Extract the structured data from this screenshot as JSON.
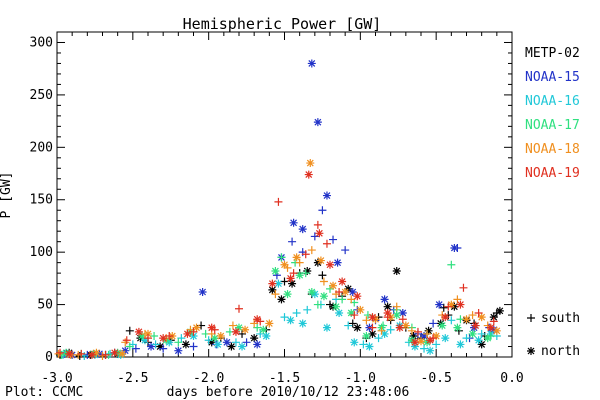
{
  "chart_data": {
    "type": "scatter",
    "title": "Hemispheric Power [GW]",
    "xlabel": "days before 2010/10/12 23:48:06",
    "ylabel": "P [GW]",
    "xlim": [
      -3.0,
      0.0
    ],
    "ylim": [
      0,
      310
    ],
    "xticks": [
      "-3.0",
      "-2.5",
      "-2.0",
      "-1.5",
      "-1.0",
      "-0.5",
      "0.0"
    ],
    "xtick_values": [
      -3.0,
      -2.5,
      -2.0,
      -1.5,
      -1.0,
      -0.5,
      0.0
    ],
    "yticks": [
      "0",
      "50",
      "100",
      "150",
      "200",
      "250",
      "300"
    ],
    "ytick_values": [
      0,
      50,
      100,
      150,
      200,
      250,
      300
    ],
    "credit": "Plot: CCMC",
    "legend_markers": [
      {
        "symbol": "+",
        "label": "south"
      },
      {
        "symbol": "*",
        "label": "north"
      }
    ],
    "series": [
      {
        "name": "METP-02",
        "color": "#000000",
        "south": [
          [
            -2.98,
            2
          ],
          [
            -2.85,
            1
          ],
          [
            -2.68,
            2
          ],
          [
            -2.52,
            25
          ],
          [
            -2.4,
            14
          ],
          [
            -2.25,
            16
          ],
          [
            -2.05,
            30
          ],
          [
            -1.92,
            18
          ],
          [
            -1.78,
            22
          ],
          [
            -1.62,
            26
          ],
          [
            -1.5,
            72
          ],
          [
            -1.4,
            80
          ],
          [
            -1.32,
            60
          ],
          [
            -1.25,
            78
          ],
          [
            -1.2,
            50
          ],
          [
            -1.12,
            58
          ],
          [
            -1.05,
            32
          ],
          [
            -0.96,
            18
          ],
          [
            -0.88,
            38
          ],
          [
            -0.8,
            35
          ],
          [
            -0.7,
            28
          ],
          [
            -0.6,
            18
          ],
          [
            -0.45,
            47
          ],
          [
            -0.42,
            40
          ],
          [
            -0.35,
            25
          ],
          [
            -0.25,
            32
          ],
          [
            -0.18,
            20
          ],
          [
            -0.1,
            42
          ]
        ],
        "north": [
          [
            -2.92,
            4
          ],
          [
            -2.78,
            2
          ],
          [
            -2.6,
            3
          ],
          [
            -2.45,
            18
          ],
          [
            -2.32,
            10
          ],
          [
            -2.15,
            12
          ],
          [
            -1.98,
            14
          ],
          [
            -1.85,
            10
          ],
          [
            -1.7,
            18
          ],
          [
            -1.58,
            64
          ],
          [
            -1.52,
            55
          ],
          [
            -1.45,
            70
          ],
          [
            -1.35,
            82
          ],
          [
            -1.28,
            90
          ],
          [
            -1.18,
            48
          ],
          [
            -1.08,
            65
          ],
          [
            -1.02,
            28
          ],
          [
            -0.92,
            22
          ],
          [
            -0.82,
            48
          ],
          [
            -0.76,
            82
          ],
          [
            -0.65,
            20
          ],
          [
            -0.55,
            25
          ],
          [
            -0.47,
            32
          ],
          [
            -0.38,
            48
          ],
          [
            -0.3,
            35
          ],
          [
            -0.2,
            12
          ],
          [
            -0.12,
            38
          ],
          [
            -0.08,
            44
          ]
        ]
      },
      {
        "name": "NOAA-15",
        "color": "#2233c8",
        "south": [
          [
            -2.95,
            3
          ],
          [
            -2.8,
            2
          ],
          [
            -2.62,
            4
          ],
          [
            -2.48,
            8
          ],
          [
            -2.3,
            8
          ],
          [
            -2.1,
            10
          ],
          [
            -1.95,
            12
          ],
          [
            -1.75,
            14
          ],
          [
            -1.55,
            78
          ],
          [
            -1.45,
            110
          ],
          [
            -1.38,
            100
          ],
          [
            -1.3,
            115
          ],
          [
            -1.25,
            140
          ],
          [
            -1.18,
            112
          ],
          [
            -1.1,
            102
          ],
          [
            -1.02,
            45
          ],
          [
            -0.9,
            35
          ],
          [
            -0.78,
            45
          ],
          [
            -0.62,
            22
          ],
          [
            -0.52,
            32
          ],
          [
            -0.36,
            104
          ],
          [
            -0.28,
            18
          ],
          [
            -0.15,
            28
          ]
        ],
        "north": [
          [
            -2.9,
            2
          ],
          [
            -2.72,
            3
          ],
          [
            -2.55,
            6
          ],
          [
            -2.38,
            10
          ],
          [
            -2.2,
            6
          ],
          [
            -2.04,
            62
          ],
          [
            -1.88,
            14
          ],
          [
            -1.68,
            12
          ],
          [
            -1.52,
            95
          ],
          [
            -1.44,
            128
          ],
          [
            -1.38,
            122
          ],
          [
            -1.32,
            280
          ],
          [
            -1.28,
            224
          ],
          [
            -1.22,
            154
          ],
          [
            -1.15,
            90
          ],
          [
            -1.05,
            62
          ],
          [
            -0.94,
            28
          ],
          [
            -0.84,
            55
          ],
          [
            -0.72,
            42
          ],
          [
            -0.58,
            20
          ],
          [
            -0.48,
            50
          ],
          [
            -0.38,
            104
          ],
          [
            -0.25,
            28
          ],
          [
            -0.12,
            26
          ]
        ]
      },
      {
        "name": "NOAA-16",
        "color": "#20c8d8",
        "south": [
          [
            -2.96,
            2
          ],
          [
            -2.82,
            1
          ],
          [
            -2.65,
            3
          ],
          [
            -2.5,
            12
          ],
          [
            -2.35,
            12
          ],
          [
            -2.18,
            18
          ],
          [
            -2.0,
            16
          ],
          [
            -1.82,
            14
          ],
          [
            -1.66,
            22
          ],
          [
            -1.5,
            38
          ],
          [
            -1.42,
            42
          ],
          [
            -1.35,
            45
          ],
          [
            -1.26,
            50
          ],
          [
            -1.16,
            55
          ],
          [
            -1.08,
            30
          ],
          [
            -0.98,
            12
          ],
          [
            -0.88,
            18
          ],
          [
            -0.8,
            26
          ],
          [
            -0.68,
            14
          ],
          [
            -0.58,
            8
          ],
          [
            -0.5,
            12
          ],
          [
            -0.4,
            35
          ],
          [
            -0.3,
            18
          ],
          [
            -0.2,
            22
          ],
          [
            -0.1,
            20
          ]
        ],
        "north": [
          [
            -2.93,
            3
          ],
          [
            -2.75,
            2
          ],
          [
            -2.58,
            2
          ],
          [
            -2.42,
            16
          ],
          [
            -2.26,
            14
          ],
          [
            -2.1,
            20
          ],
          [
            -1.94,
            12
          ],
          [
            -1.78,
            10
          ],
          [
            -1.62,
            20
          ],
          [
            -1.54,
            70
          ],
          [
            -1.46,
            35
          ],
          [
            -1.38,
            32
          ],
          [
            -1.3,
            60
          ],
          [
            -1.22,
            28
          ],
          [
            -1.14,
            42
          ],
          [
            -1.04,
            14
          ],
          [
            -0.94,
            10
          ],
          [
            -0.84,
            22
          ],
          [
            -0.74,
            30
          ],
          [
            -0.64,
            10
          ],
          [
            -0.54,
            6
          ],
          [
            -0.44,
            18
          ],
          [
            -0.34,
            12
          ],
          [
            -0.22,
            16
          ],
          [
            -0.14,
            22
          ]
        ]
      },
      {
        "name": "NOAA-17",
        "color": "#30e080",
        "south": [
          [
            -2.97,
            2
          ],
          [
            -2.84,
            3
          ],
          [
            -2.66,
            2
          ],
          [
            -2.52,
            10
          ],
          [
            -2.36,
            20
          ],
          [
            -2.2,
            14
          ],
          [
            -2.02,
            22
          ],
          [
            -1.86,
            24
          ],
          [
            -1.68,
            28
          ],
          [
            -1.52,
            95
          ],
          [
            -1.43,
            90
          ],
          [
            -1.36,
            80
          ],
          [
            -1.28,
            50
          ],
          [
            -1.2,
            65
          ],
          [
            -1.12,
            55
          ],
          [
            -1.04,
            52
          ],
          [
            -0.95,
            40
          ],
          [
            -0.85,
            30
          ],
          [
            -0.76,
            45
          ],
          [
            -0.66,
            28
          ],
          [
            -0.56,
            22
          ],
          [
            -0.4,
            88
          ],
          [
            -0.34,
            36
          ],
          [
            -0.24,
            30
          ],
          [
            -0.14,
            20
          ]
        ],
        "north": [
          [
            -2.94,
            4
          ],
          [
            -2.76,
            3
          ],
          [
            -2.6,
            4
          ],
          [
            -2.44,
            20
          ],
          [
            -2.28,
            16
          ],
          [
            -2.12,
            24
          ],
          [
            -1.96,
            18
          ],
          [
            -1.8,
            28
          ],
          [
            -1.64,
            26
          ],
          [
            -1.56,
            82
          ],
          [
            -1.48,
            60
          ],
          [
            -1.4,
            78
          ],
          [
            -1.32,
            62
          ],
          [
            -1.24,
            58
          ],
          [
            -1.16,
            48
          ],
          [
            -1.06,
            42
          ],
          [
            -0.96,
            20
          ],
          [
            -0.86,
            28
          ],
          [
            -0.76,
            40
          ],
          [
            -0.66,
            16
          ],
          [
            -0.56,
            14
          ],
          [
            -0.46,
            30
          ],
          [
            -0.36,
            28
          ],
          [
            -0.26,
            22
          ],
          [
            -0.16,
            18
          ]
        ]
      },
      {
        "name": "NOAA-18",
        "color": "#f09020",
        "south": [
          [
            -2.99,
            3
          ],
          [
            -2.86,
            2
          ],
          [
            -2.7,
            1
          ],
          [
            -2.55,
            14
          ],
          [
            -2.42,
            22
          ],
          [
            -2.28,
            18
          ],
          [
            -2.12,
            26
          ],
          [
            -1.98,
            22
          ],
          [
            -1.84,
            30
          ],
          [
            -1.7,
            32
          ],
          [
            -1.56,
            60
          ],
          [
            -1.48,
            85
          ],
          [
            -1.4,
            90
          ],
          [
            -1.32,
            102
          ],
          [
            -1.24,
            72
          ],
          [
            -1.16,
            60
          ],
          [
            -1.06,
            55
          ],
          [
            -0.96,
            35
          ],
          [
            -0.86,
            25
          ],
          [
            -0.76,
            48
          ],
          [
            -0.66,
            25
          ],
          [
            -0.56,
            22
          ],
          [
            -0.46,
            40
          ],
          [
            -0.36,
            55
          ],
          [
            -0.26,
            40
          ],
          [
            -0.16,
            30
          ]
        ],
        "north": [
          [
            -2.91,
            2
          ],
          [
            -2.74,
            4
          ],
          [
            -2.57,
            3
          ],
          [
            -2.4,
            22
          ],
          [
            -2.24,
            20
          ],
          [
            -2.08,
            28
          ],
          [
            -1.92,
            20
          ],
          [
            -1.76,
            26
          ],
          [
            -1.6,
            32
          ],
          [
            -1.5,
            88
          ],
          [
            -1.42,
            95
          ],
          [
            -1.33,
            185
          ],
          [
            -1.26,
            92
          ],
          [
            -1.18,
            68
          ],
          [
            -1.1,
            62
          ],
          [
            -1.0,
            45
          ],
          [
            -0.9,
            36
          ],
          [
            -0.8,
            38
          ],
          [
            -0.7,
            30
          ],
          [
            -0.6,
            15
          ],
          [
            -0.5,
            20
          ],
          [
            -0.4,
            50
          ],
          [
            -0.3,
            36
          ],
          [
            -0.2,
            38
          ],
          [
            -0.1,
            25
          ]
        ]
      },
      {
        "name": "NOAA-19",
        "color": "#e03020",
        "south": [
          [
            -2.98,
            4
          ],
          [
            -2.84,
            3
          ],
          [
            -2.68,
            2
          ],
          [
            -2.54,
            16
          ],
          [
            -2.4,
            18
          ],
          [
            -2.26,
            20
          ],
          [
            -2.1,
            24
          ],
          [
            -1.96,
            26
          ],
          [
            -1.8,
            46
          ],
          [
            -1.66,
            34
          ],
          [
            -1.54,
            148
          ],
          [
            -1.44,
            80
          ],
          [
            -1.36,
            98
          ],
          [
            -1.28,
            126
          ],
          [
            -1.22,
            108
          ],
          [
            -1.14,
            62
          ],
          [
            -1.04,
            40
          ],
          [
            -0.92,
            28
          ],
          [
            -0.82,
            38
          ],
          [
            -0.72,
            36
          ],
          [
            -0.62,
            24
          ],
          [
            -0.52,
            18
          ],
          [
            -0.42,
            48
          ],
          [
            -0.32,
            66
          ],
          [
            -0.22,
            42
          ],
          [
            -0.12,
            34
          ]
        ],
        "north": [
          [
            -2.92,
            3
          ],
          [
            -2.77,
            2
          ],
          [
            -2.62,
            4
          ],
          [
            -2.46,
            24
          ],
          [
            -2.3,
            18
          ],
          [
            -2.14,
            22
          ],
          [
            -1.98,
            28
          ],
          [
            -1.82,
            24
          ],
          [
            -1.68,
            36
          ],
          [
            -1.58,
            70
          ],
          [
            -1.46,
            75
          ],
          [
            -1.34,
            174
          ],
          [
            -1.27,
            118
          ],
          [
            -1.2,
            88
          ],
          [
            -1.12,
            72
          ],
          [
            -1.02,
            58
          ],
          [
            -0.92,
            38
          ],
          [
            -0.82,
            42
          ],
          [
            -0.74,
            28
          ],
          [
            -0.64,
            14
          ],
          [
            -0.54,
            16
          ],
          [
            -0.44,
            38
          ],
          [
            -0.34,
            50
          ],
          [
            -0.24,
            30
          ],
          [
            -0.14,
            28
          ]
        ]
      }
    ]
  }
}
